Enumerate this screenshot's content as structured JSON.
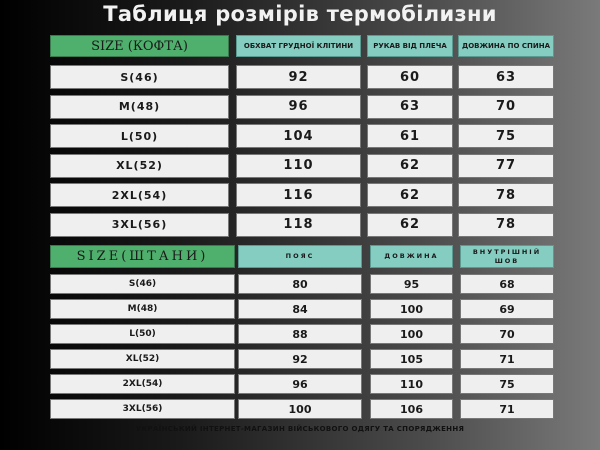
{
  "title": "Таблиця розмірів термобілизни",
  "jacket": {
    "headers": [
      "SIZE (КОФТА)",
      "ОБХВАТ ГРУДНОЇ КЛІТИНИ",
      "РУКАВ ВІД ПЛЕЧА",
      "ДОВЖИНА ПО СПИНА"
    ],
    "rows": [
      [
        "S(46)",
        "92",
        "60",
        "63"
      ],
      [
        "M(48)",
        "96",
        "63",
        "70"
      ],
      [
        "L(50)",
        "104",
        "61",
        "75"
      ],
      [
        "XL(52)",
        "110",
        "62",
        "77"
      ],
      [
        "2XL(54)",
        "116",
        "62",
        "78"
      ],
      [
        "3XL(56)",
        "118",
        "62",
        "78"
      ]
    ]
  },
  "pants": {
    "headers": [
      "SIZE(ШТАНИ)",
      "ПОЯС",
      "ДОВЖИНА",
      "ВНУТРІШНІЙ ШОВ"
    ],
    "rows": [
      [
        "S(46)",
        "80",
        "95",
        "68"
      ],
      [
        "M(48)",
        "84",
        "100",
        "69"
      ],
      [
        "L(50)",
        "88",
        "100",
        "70"
      ],
      [
        "XL(52)",
        "92",
        "105",
        "71"
      ],
      [
        "2XL(54)",
        "96",
        "110",
        "75"
      ],
      [
        "3XL(56)",
        "100",
        "106",
        "71"
      ]
    ]
  },
  "footer": "УКРАЇНСЬКИЙ ІНТЕРНЕТ-МАГАЗИН ВІЙСЬКОВОГО ОДЯГУ ТА СПОРЯДЖЕННЯ",
  "colors": {
    "header_size": "#4faf6c",
    "header_measure": "#86cdc1",
    "cell": "#efefef"
  }
}
